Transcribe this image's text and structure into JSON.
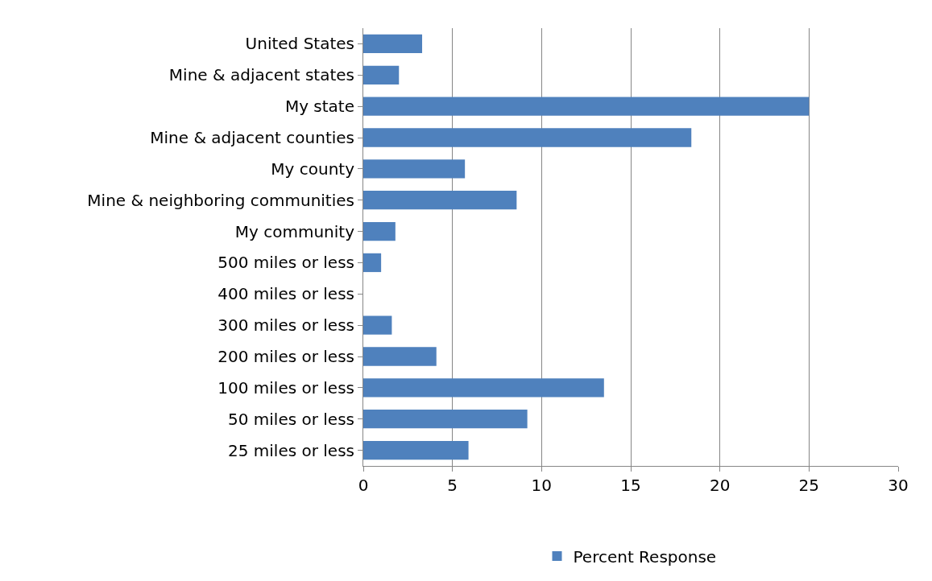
{
  "chart_data": {
    "type": "bar",
    "orientation": "horizontal",
    "categories": [
      "United States",
      "Mine & adjacent states",
      "My state",
      "Mine & adjacent counties",
      "My county",
      "Mine & neighboring communities",
      "My community",
      "500 miles or less",
      "400 miles or less",
      "300 miles or less",
      "200 miles or less",
      "100 miles or less",
      "50 miles or less",
      "25 miles or less"
    ],
    "series": [
      {
        "name": "Percent Response",
        "color": "#4f81bd",
        "values": [
          3.3,
          2.0,
          25.0,
          18.4,
          5.7,
          8.6,
          1.8,
          1.0,
          0,
          1.6,
          4.1,
          13.5,
          9.2,
          5.9
        ]
      }
    ],
    "xlim": [
      0,
      30
    ],
    "xticks": [
      0,
      5,
      10,
      15,
      20,
      25,
      30
    ],
    "grid": "x",
    "legend": "bottom"
  }
}
